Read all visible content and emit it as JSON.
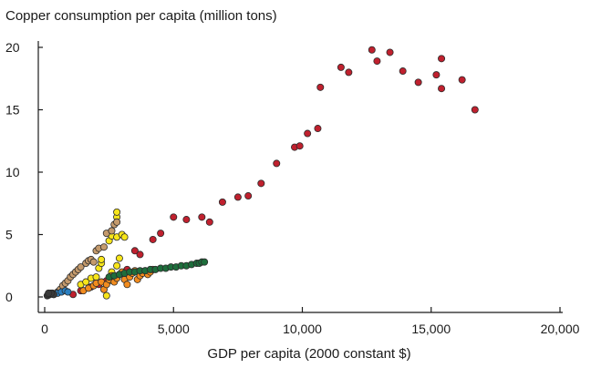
{
  "chart_data": {
    "type": "scatter",
    "title": "Copper consumption per capita (million tons)",
    "xlabel": "GDP per capita (2000 constant $)",
    "ylabel": "",
    "xlim": [
      0,
      20000
    ],
    "ylim": [
      -0.7,
      21
    ],
    "x_ticks": [
      0,
      5000,
      10000,
      15000,
      20000
    ],
    "x_tick_labels": [
      "0",
      "5,000",
      "10,000",
      "15,000",
      "20,000"
    ],
    "y_ticks": [
      0,
      5,
      10,
      15,
      20
    ],
    "y_tick_labels": [
      "0",
      "5",
      "10",
      "15",
      "20"
    ],
    "grid": false,
    "series": [
      {
        "color": "#c0202e",
        "points": [
          [
            1100,
            0.2
          ],
          [
            1400,
            0.5
          ],
          [
            1800,
            0.8
          ],
          [
            2100,
            1.0
          ],
          [
            2400,
            1.3
          ],
          [
            2700,
            1.6
          ],
          [
            3000,
            1.9
          ],
          [
            3200,
            2.2
          ],
          [
            3500,
            3.7
          ],
          [
            3700,
            3.4
          ],
          [
            4200,
            4.6
          ],
          [
            4500,
            5.1
          ],
          [
            5000,
            6.4
          ],
          [
            5500,
            6.2
          ],
          [
            6100,
            6.4
          ],
          [
            6400,
            6.0
          ],
          [
            6900,
            7.6
          ],
          [
            7500,
            8.0
          ],
          [
            7900,
            8.1
          ],
          [
            8400,
            9.1
          ],
          [
            9000,
            10.7
          ],
          [
            9700,
            12.0
          ],
          [
            9900,
            12.1
          ],
          [
            10200,
            13.1
          ],
          [
            10600,
            13.5
          ],
          [
            10700,
            16.8
          ],
          [
            11500,
            18.4
          ],
          [
            11800,
            18.0
          ],
          [
            12700,
            19.8
          ],
          [
            12900,
            18.9
          ],
          [
            13400,
            19.6
          ],
          [
            13900,
            18.1
          ],
          [
            14500,
            17.2
          ],
          [
            15200,
            17.8
          ],
          [
            15400,
            19.1
          ],
          [
            15400,
            16.7
          ],
          [
            16200,
            17.4
          ],
          [
            16700,
            15.0
          ]
        ]
      },
      {
        "color": "#f7e51a",
        "points": [
          [
            1400,
            1.0
          ],
          [
            1600,
            1.2
          ],
          [
            1800,
            1.5
          ],
          [
            2000,
            1.6
          ],
          [
            2100,
            2.3
          ],
          [
            2200,
            2.7
          ],
          [
            2200,
            3.0
          ],
          [
            2400,
            0.1
          ],
          [
            2500,
            1.3
          ],
          [
            2600,
            2.0
          ],
          [
            2800,
            2.5
          ],
          [
            2900,
            3.1
          ],
          [
            2500,
            4.5
          ],
          [
            2600,
            4.9
          ],
          [
            2800,
            4.8
          ],
          [
            3000,
            5.0
          ],
          [
            3100,
            4.8
          ],
          [
            2800,
            6.4
          ],
          [
            2800,
            6.8
          ]
        ]
      },
      {
        "color": "#c49a6c",
        "points": [
          [
            500,
            0.4
          ],
          [
            600,
            0.6
          ],
          [
            700,
            0.9
          ],
          [
            800,
            1.1
          ],
          [
            900,
            1.3
          ],
          [
            1000,
            1.6
          ],
          [
            1100,
            1.8
          ],
          [
            1200,
            2.0
          ],
          [
            1300,
            2.2
          ],
          [
            1400,
            2.4
          ],
          [
            1600,
            2.7
          ],
          [
            1700,
            2.9
          ],
          [
            1800,
            3.0
          ],
          [
            1900,
            2.8
          ],
          [
            2000,
            3.7
          ],
          [
            2100,
            3.9
          ],
          [
            2300,
            4.0
          ],
          [
            2400,
            5.1
          ],
          [
            2600,
            5.3
          ],
          [
            2700,
            5.8
          ],
          [
            2800,
            6.0
          ]
        ]
      },
      {
        "color": "#f28c1e",
        "points": [
          [
            1500,
            0.5
          ],
          [
            1700,
            0.7
          ],
          [
            1900,
            0.9
          ],
          [
            2000,
            1.1
          ],
          [
            2200,
            1.2
          ],
          [
            2300,
            0.6
          ],
          [
            2400,
            1.0
          ],
          [
            2500,
            1.4
          ],
          [
            2600,
            1.7
          ],
          [
            2700,
            1.2
          ],
          [
            2800,
            1.5
          ],
          [
            2900,
            1.8
          ],
          [
            3000,
            2.0
          ],
          [
            3100,
            1.4
          ],
          [
            3200,
            1.0
          ],
          [
            3300,
            1.6
          ],
          [
            3400,
            1.9
          ],
          [
            3500,
            2.1
          ],
          [
            3600,
            1.4
          ],
          [
            3700,
            1.7
          ],
          [
            3800,
            1.9
          ],
          [
            3900,
            2.1
          ],
          [
            4000,
            1.8
          ],
          [
            4100,
            2.0
          ],
          [
            4200,
            2.2
          ]
        ]
      },
      {
        "color": "#1e6e3c",
        "points": [
          [
            2500,
            1.6
          ],
          [
            2700,
            1.7
          ],
          [
            2900,
            1.8
          ],
          [
            3100,
            1.9
          ],
          [
            3300,
            2.0
          ],
          [
            3500,
            2.0
          ],
          [
            3700,
            2.1
          ],
          [
            3900,
            2.1
          ],
          [
            4100,
            2.2
          ],
          [
            4300,
            2.2
          ],
          [
            4500,
            2.3
          ],
          [
            4700,
            2.3
          ],
          [
            4900,
            2.4
          ],
          [
            5100,
            2.4
          ],
          [
            5300,
            2.5
          ],
          [
            5500,
            2.5
          ],
          [
            5700,
            2.6
          ],
          [
            5900,
            2.7
          ],
          [
            6000,
            2.7
          ],
          [
            6100,
            2.8
          ],
          [
            6200,
            2.8
          ]
        ]
      },
      {
        "color": "#2a7fc1",
        "points": [
          [
            350,
            0.2
          ],
          [
            500,
            0.3
          ],
          [
            650,
            0.4
          ],
          [
            800,
            0.5
          ],
          [
            900,
            0.4
          ]
        ]
      },
      {
        "color": "#3a3a3a",
        "points": [
          [
            100,
            0.1
          ],
          [
            150,
            0.15
          ],
          [
            200,
            0.2
          ],
          [
            250,
            0.25
          ],
          [
            300,
            0.3
          ],
          [
            350,
            0.2
          ],
          [
            250,
            0.3
          ],
          [
            150,
            0.3
          ]
        ]
      }
    ]
  }
}
